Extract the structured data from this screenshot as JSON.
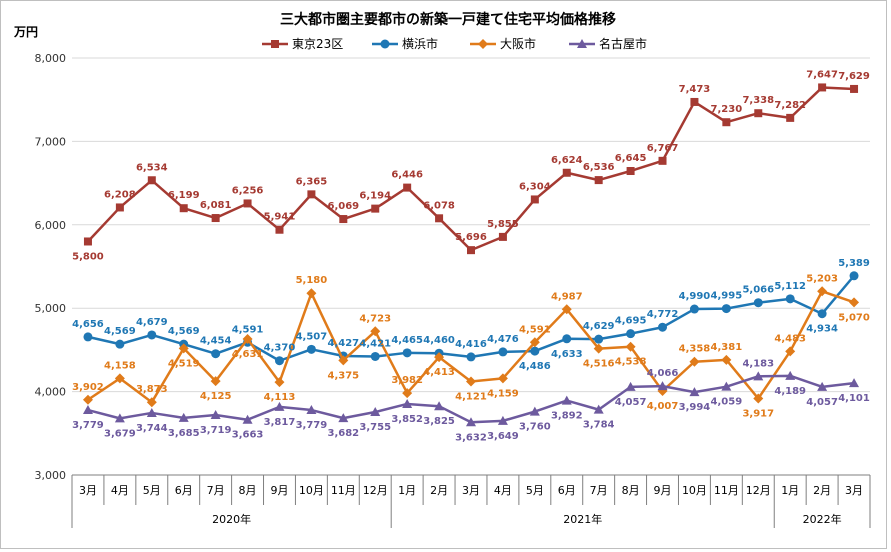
{
  "chart_data": {
    "type": "line",
    "title": "三大都市圏主要都市の新築一戸建て住宅平均価格推移",
    "ylabel": "万円",
    "ylim": [
      3000,
      8000
    ],
    "yticks": [
      "3,000",
      "4,000",
      "5,000",
      "6,000",
      "7,000",
      "8,000"
    ],
    "grid": true,
    "legend_position": "top",
    "categories": [
      "3月",
      "4月",
      "5月",
      "6月",
      "7月",
      "8月",
      "9月",
      "10月",
      "11月",
      "12月",
      "1月",
      "2月",
      "3月",
      "4月",
      "5月",
      "6月",
      "7月",
      "8月",
      "9月",
      "10月",
      "11月",
      "12月",
      "1月",
      "2月",
      "3月"
    ],
    "years": [
      {
        "label": "2020年",
        "start": 0,
        "end": 9
      },
      {
        "label": "2021年",
        "start": 10,
        "end": 21
      },
      {
        "label": "2022年",
        "start": 22,
        "end": 24
      }
    ],
    "series": [
      {
        "name": "東京23区",
        "color": "#a53a32",
        "marker": "square",
        "values": [
          5800,
          6208,
          6534,
          6199,
          6081,
          6256,
          5941,
          6365,
          6069,
          6194,
          6446,
          6078,
          5696,
          5855,
          6304,
          6624,
          6536,
          6645,
          6767,
          7473,
          7230,
          7338,
          7282,
          7647,
          7629
        ],
        "labels": [
          "5,800",
          "6,208",
          "6,534",
          "6,199",
          "6,081",
          "6,256",
          "5,941",
          "6,365",
          "6,069",
          "6,194",
          "6,446",
          "6,078",
          "5,696",
          "5,855",
          "6,304",
          "6,624",
          "6,536",
          "6,645",
          "6,767",
          "7,473",
          "7,230",
          "7,338",
          "7,282",
          "7,647",
          "7,629"
        ],
        "label_pos": [
          "below",
          "above",
          "above",
          "above",
          "above",
          "above",
          "above",
          "above",
          "above",
          "above",
          "above",
          "above",
          "above",
          "above",
          "above",
          "above",
          "above",
          "above",
          "above",
          "above",
          "above",
          "above",
          "above",
          "above",
          "above"
        ]
      },
      {
        "name": "横浜市",
        "color": "#1f77b4",
        "marker": "circle",
        "values": [
          4656,
          4569,
          4679,
          4569,
          4454,
          4591,
          4370,
          4507,
          4427,
          4421,
          4465,
          4460,
          4416,
          4476,
          4486,
          4633,
          4629,
          4695,
          4772,
          4990,
          4995,
          5066,
          5112,
          4934,
          5389
        ],
        "labels": [
          "4,656",
          "4,569",
          "4,679",
          "4,569",
          "4,454",
          "4,591",
          "4,370",
          "4,507",
          "4,427",
          "4,421",
          "4,465",
          "4,460",
          "4,416",
          "4,476",
          "4,486",
          "4,633",
          "4,629",
          "4,695",
          "4,772",
          "4,990",
          "4,995",
          "5,066",
          "5,112",
          "4,934",
          "5,389"
        ],
        "label_pos": [
          "above",
          "above",
          "above",
          "above",
          "above",
          "above",
          "above",
          "above",
          "above",
          "above",
          "above",
          "above",
          "above",
          "above",
          "below",
          "below",
          "above",
          "above",
          "above",
          "above",
          "above",
          "above",
          "above",
          "below",
          "above"
        ]
      },
      {
        "name": "大阪市",
        "color": "#e07b1a",
        "marker": "diamond",
        "values": [
          3902,
          4158,
          3873,
          4519,
          4125,
          4631,
          4113,
          5180,
          4375,
          4723,
          3982,
          4413,
          4121,
          4159,
          4591,
          4987,
          4516,
          4538,
          4007,
          4358,
          4381,
          3917,
          4483,
          5203,
          5070
        ],
        "labels": [
          "3,902",
          "4,158",
          "3,873",
          "4,519",
          "4,125",
          "4,631",
          "4,113",
          "5,180",
          "4,375",
          "4,723",
          "3,982",
          "4,413",
          "4,121",
          "4,159",
          "4,591",
          "4,987",
          "4,516",
          "4,538",
          "4,007",
          "4,358",
          "4,381",
          "3,917",
          "4,483",
          "5,203",
          "5,070"
        ],
        "label_pos": [
          "above",
          "above",
          "above",
          "below",
          "below",
          "below",
          "below",
          "above",
          "below",
          "above",
          "above",
          "below",
          "below",
          "below",
          "above",
          "above",
          "below",
          "below",
          "below",
          "above",
          "above",
          "below",
          "above",
          "above",
          "below"
        ]
      },
      {
        "name": "名古屋市",
        "color": "#6d5a9e",
        "marker": "triangle",
        "values": [
          3779,
          3679,
          3744,
          3685,
          3719,
          3663,
          3817,
          3779,
          3682,
          3755,
          3852,
          3825,
          3632,
          3649,
          3760,
          3892,
          3784,
          4057,
          4066,
          3994,
          4059,
          4183,
          4189,
          4057,
          4101
        ],
        "labels": [
          "3,779",
          "3,679",
          "3,744",
          "3,685",
          "3,719",
          "3,663",
          "3,817",
          "3,779",
          "3,682",
          "3,755",
          "3,852",
          "3,825",
          "3,632",
          "3,649",
          "3,760",
          "3,892",
          "3,784",
          "4,057",
          "4,066",
          "3,994",
          "4,059",
          "4,183",
          "4,189",
          "4,057",
          "4,101"
        ],
        "label_pos": [
          "below",
          "below",
          "below",
          "below",
          "below",
          "below",
          "below",
          "below",
          "below",
          "below",
          "below",
          "below",
          "below",
          "below",
          "below",
          "below",
          "below",
          "below",
          "above",
          "below",
          "below",
          "above",
          "below",
          "below",
          "below"
        ]
      }
    ]
  }
}
